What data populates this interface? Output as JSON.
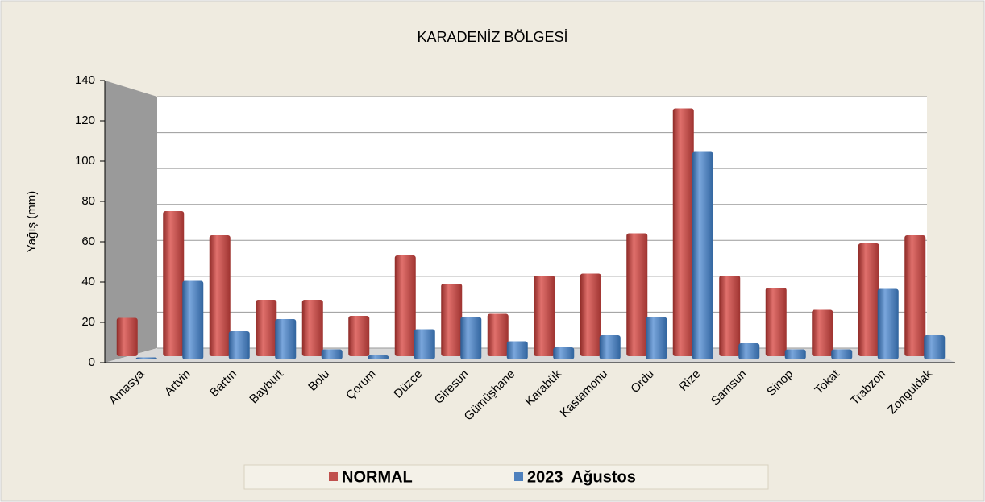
{
  "chart_data": {
    "type": "bar",
    "title": "KARADENİZ BÖLGESİ",
    "y_label": "Yağış (mm)",
    "categories": [
      "Amasya",
      "Artvin",
      "Bartın",
      "Bayburt",
      "Bolu",
      "Çorum",
      "Düzce",
      "Giresun",
      "Gümüşhane",
      "Karabük",
      "Kastamonu",
      "Ordu",
      "Rize",
      "Samsun",
      "Sinop",
      "Tokat",
      "Trabzon",
      "Zonguldak"
    ],
    "series": [
      {
        "name": "NORMAL",
        "color": "#c0504d",
        "values": [
          19,
          72,
          60,
          28,
          28,
          20,
          50,
          36,
          21,
          40,
          41,
          61,
          123,
          40,
          34,
          23,
          56,
          60
        ]
      },
      {
        "name": "2023  Ağustos",
        "color": "#4f81bd",
        "values": [
          1,
          39,
          14,
          20,
          5,
          2,
          15,
          21,
          9,
          6,
          12,
          21,
          103,
          8,
          5,
          5,
          35,
          12
        ]
      }
    ],
    "ylim": [
      0,
      140
    ],
    "yticks": [
      0,
      20,
      40,
      60,
      80,
      100,
      120,
      140
    ],
    "grid": true
  }
}
